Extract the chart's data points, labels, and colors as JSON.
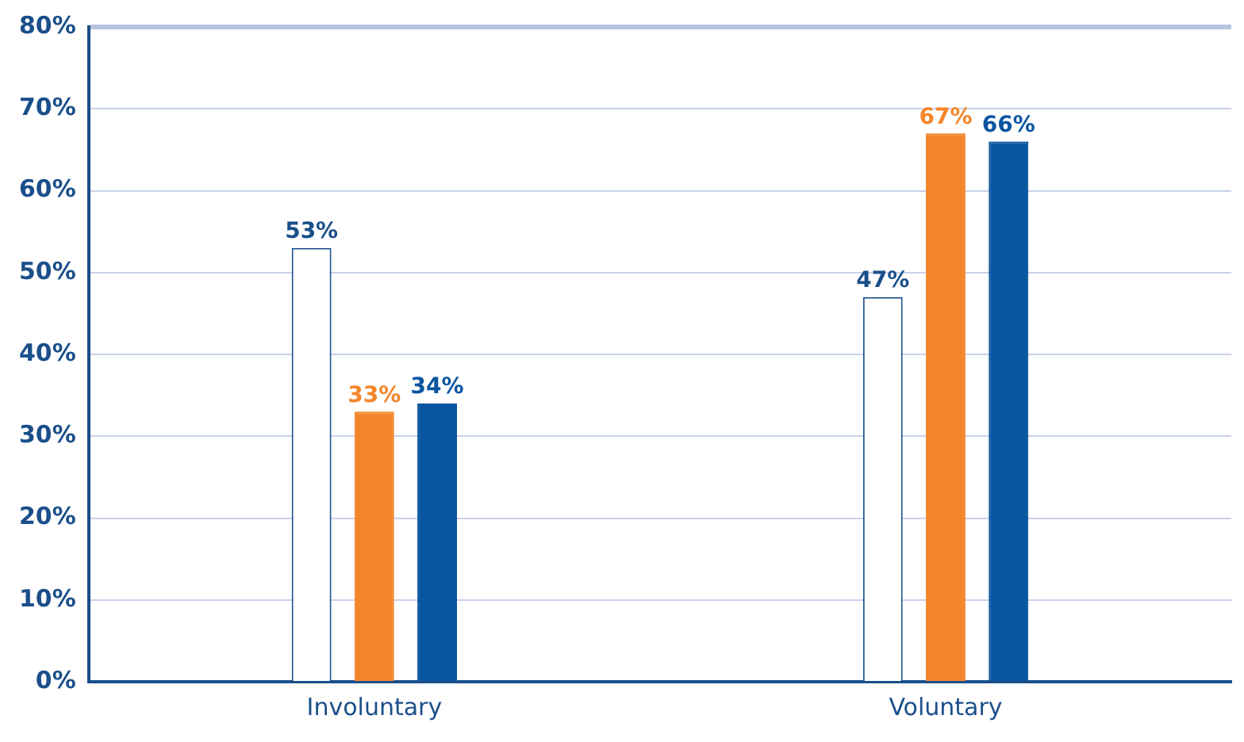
{
  "chart_data": {
    "type": "bar",
    "categories": [
      "Involuntary",
      "Voluntary"
    ],
    "series": [
      {
        "color": "#ffffff",
        "values": [
          53,
          47
        ],
        "value_labels": [
          "53%",
          "47%"
        ]
      },
      {
        "color": "#f3862b",
        "values": [
          33,
          67
        ],
        "value_labels": [
          "33%",
          "67%"
        ]
      },
      {
        "color": "#0a55a0",
        "values": [
          34,
          66
        ],
        "value_labels": [
          "34%",
          "66%"
        ]
      }
    ],
    "ylim": [
      0,
      80
    ],
    "yticks": [
      {
        "value": 0,
        "label": "0%"
      },
      {
        "value": 10,
        "label": "10%"
      },
      {
        "value": 20,
        "label": "20%"
      },
      {
        "value": 30,
        "label": "30%"
      },
      {
        "value": 40,
        "label": "40%"
      },
      {
        "value": 50,
        "label": "50%"
      },
      {
        "value": 60,
        "label": "60%"
      },
      {
        "value": 70,
        "label": "70%"
      },
      {
        "value": 80,
        "label": "80%"
      }
    ],
    "grid": "y",
    "legend": false
  }
}
